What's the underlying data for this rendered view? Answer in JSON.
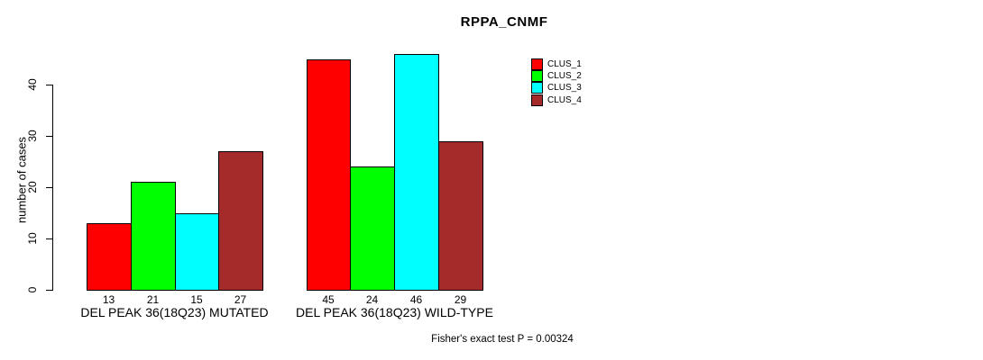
{
  "chart_data": {
    "type": "bar",
    "title": "RPPA_CNMF",
    "xlabel": "",
    "ylabel": "number of cases",
    "ylim": [
      0,
      47
    ],
    "yticks": [
      0,
      10,
      20,
      30,
      40
    ],
    "grid": false,
    "legend_position": "top-right",
    "categories": [
      "DEL PEAK 36(18Q23) MUTATED",
      "DEL PEAK 36(18Q23) WILD-TYPE"
    ],
    "series": [
      {
        "name": "CLUS_1",
        "color": "#ff0000",
        "values": [
          13,
          45
        ]
      },
      {
        "name": "CLUS_2",
        "color": "#00ff00",
        "values": [
          21,
          24
        ]
      },
      {
        "name": "CLUS_3",
        "color": "#00ffff",
        "values": [
          15,
          46
        ]
      },
      {
        "name": "CLUS_4",
        "color": "#a52a2a",
        "values": [
          27,
          29
        ]
      }
    ],
    "bar_value_labels_shown": true,
    "annotation": "Fisher's exact test P = 0.00324"
  }
}
